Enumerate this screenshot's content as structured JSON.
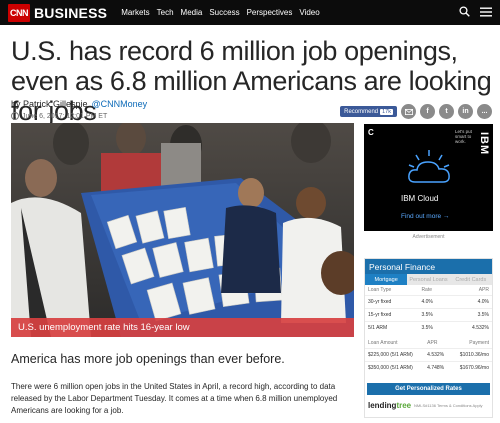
{
  "header": {
    "logo_cnn": "CNN",
    "logo_business": "BUSINESS",
    "nav": [
      "Markets",
      "Tech",
      "Media",
      "Success",
      "Perspectives",
      "Video"
    ]
  },
  "article": {
    "headline": "U.S. has record 6 million job openings, even as 6.8 million Americans are looking for jobs",
    "author_prefix": "by Patrick Gillespie",
    "author_handle": "@CNNMoney",
    "date": "June 6, 2017: 12:01 PM ET",
    "photo_caption": "U.S. unemployment rate hits 16-year low",
    "lead": "America has more job openings than ever before.",
    "paragraph": "There were 6 million open jobs in the United States in April, a record high, according to data released by the Labor Department Tuesday. It comes at a time when 6.8 million unemployed Americans are looking for a job."
  },
  "share": {
    "recommend_label": "Recommend",
    "recommend_count": "17k",
    "buttons": [
      "f",
      "t",
      "in",
      "..."
    ]
  },
  "ad": {
    "corner": "C",
    "tagline": "Let's put smart to work.",
    "brand": "IBM",
    "title": "IBM Cloud",
    "cta": "Find out more",
    "label": "Advertisement"
  },
  "finance": {
    "title": "Personal Finance",
    "tabs": [
      "Mortgage",
      "Personal Loans",
      "Credit Cards"
    ],
    "active_tab": 0,
    "table1": {
      "headers": [
        "Loan Type",
        "Rate",
        "APR"
      ],
      "rows": [
        [
          "30-yr fixed",
          "4.0%",
          "4.0%"
        ],
        [
          "15-yr fixed",
          "3.5%",
          "3.5%"
        ],
        [
          "5/1 ARM",
          "3.5%",
          "4.532%"
        ]
      ]
    },
    "table2": {
      "headers": [
        "Loan Amount",
        "APR",
        "Payment"
      ],
      "rows": [
        [
          "$225,000 (5/1 ARM)",
          "4.532%",
          "$1010.36/mo"
        ],
        [
          "$350,000 (5/1 ARM)",
          "4.748%",
          "$1670.96/mo"
        ]
      ]
    },
    "button": "Get Personalized Rates",
    "logo_a": "lending",
    "logo_b": "tree",
    "legal": "NMLS#1136 Terms & Conditions Apply"
  },
  "colors": {
    "topbar": "#0c0c0c",
    "cnn_red": "#cc0000",
    "caption_bg": "#d74040",
    "finance_blue": "#1b6fab",
    "link_blue": "#0c6ab8"
  }
}
